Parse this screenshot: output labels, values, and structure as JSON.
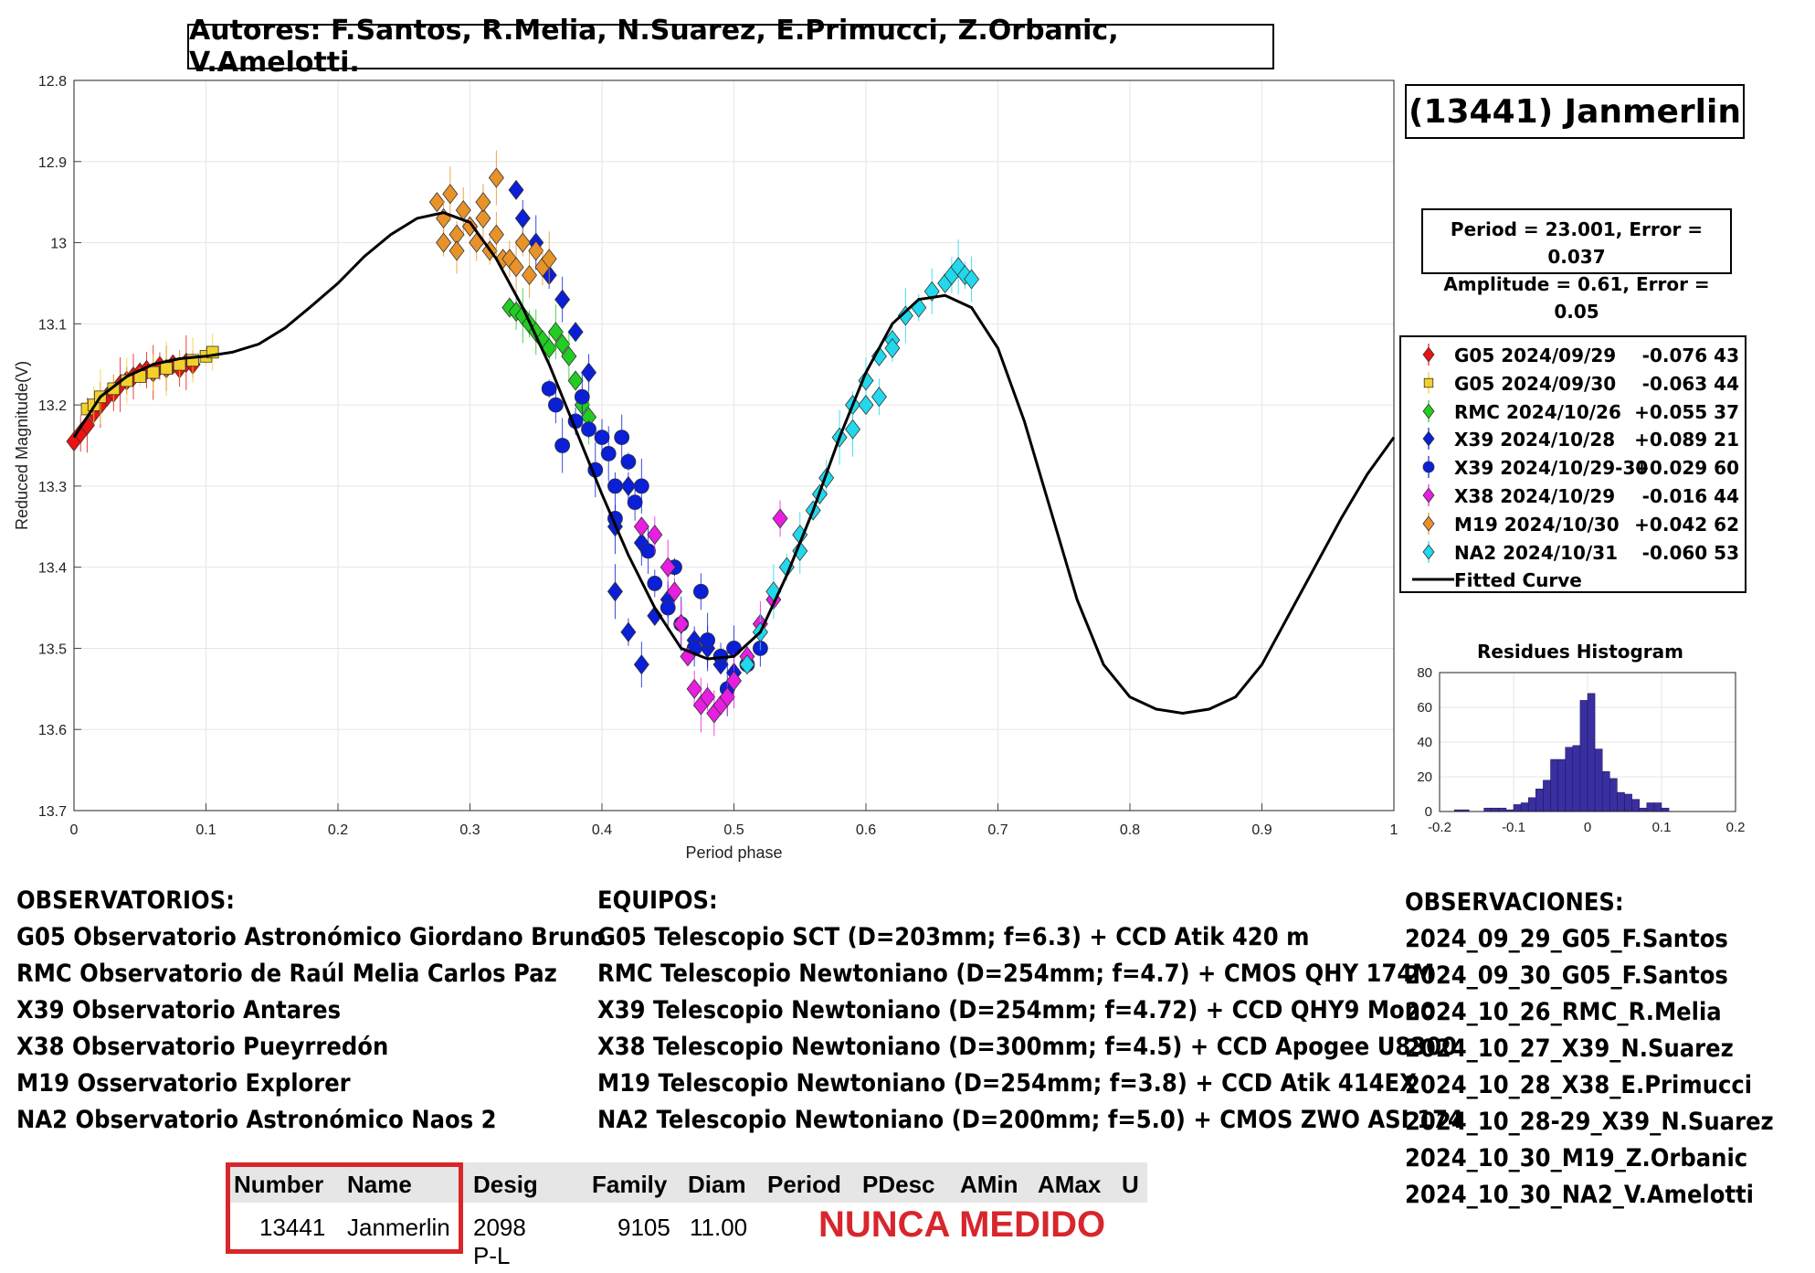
{
  "header": {
    "authors": "Autores: F.Santos, R.Melia, N.Suarez, E.Primucci, Z.Orbanic, V.Amelotti."
  },
  "asteroid_title": "(13441) Janmerlin",
  "fit_info": {
    "line1": "Period =  23.001, Error = 0.037",
    "line2": "Amplitude = 0.61, Error = 0.05"
  },
  "chart_data": [
    {
      "type": "scatter",
      "xlabel": "Period phase",
      "ylabel": "Reduced Magnitude(V)",
      "xlim": [
        0,
        1
      ],
      "ylim": [
        12.8,
        13.7
      ],
      "y_reversed": true,
      "x_ticks": [
        "0",
        "0.1",
        "0.2",
        "0.3",
        "0.4",
        "0.5",
        "0.6",
        "0.7",
        "0.8",
        "0.9",
        "1"
      ],
      "y_ticks": [
        "12.8",
        "12.9",
        "13",
        "13.1",
        "13.2",
        "13.3",
        "13.4",
        "13.5",
        "13.6",
        "13.7"
      ],
      "grid": true,
      "legend_position": "right",
      "fitted_curve": {
        "name": "Fitted Curve",
        "color": "#000000",
        "x": [
          0.0,
          0.02,
          0.04,
          0.06,
          0.08,
          0.1,
          0.12,
          0.14,
          0.16,
          0.18,
          0.2,
          0.22,
          0.24,
          0.26,
          0.28,
          0.3,
          0.32,
          0.34,
          0.36,
          0.38,
          0.4,
          0.42,
          0.44,
          0.46,
          0.48,
          0.5,
          0.52,
          0.54,
          0.56,
          0.58,
          0.6,
          0.62,
          0.64,
          0.66,
          0.68,
          0.7,
          0.72,
          0.74,
          0.76,
          0.78,
          0.8,
          0.82,
          0.84,
          0.86,
          0.88,
          0.9,
          0.92,
          0.94,
          0.96,
          0.98,
          1.0
        ],
        "y": [
          13.24,
          13.19,
          13.165,
          13.15,
          13.143,
          13.14,
          13.135,
          13.125,
          13.105,
          13.078,
          13.05,
          13.017,
          12.99,
          12.97,
          12.963,
          12.975,
          13.02,
          13.08,
          13.15,
          13.23,
          13.31,
          13.385,
          13.45,
          13.5,
          13.513,
          13.51,
          13.48,
          13.41,
          13.33,
          13.24,
          13.16,
          13.1,
          13.07,
          13.065,
          13.08,
          13.13,
          13.22,
          13.33,
          13.44,
          13.52,
          13.56,
          13.575,
          13.58,
          13.575,
          13.56,
          13.52,
          13.46,
          13.4,
          13.34,
          13.285,
          13.24
        ]
      },
      "series": [
        {
          "name": "G05 2024/09/29",
          "offset": "-0.076 43",
          "marker": "diamond",
          "color": "#ee1111",
          "x": [
            0.0,
            0.005,
            0.01,
            0.015,
            0.02,
            0.025,
            0.03,
            0.035,
            0.04,
            0.045,
            0.05,
            0.055,
            0.06,
            0.065,
            0.07,
            0.075,
            0.08,
            0.085,
            0.09
          ],
          "y": [
            13.245,
            13.235,
            13.225,
            13.21,
            13.2,
            13.19,
            13.185,
            13.175,
            13.17,
            13.165,
            13.16,
            13.157,
            13.16,
            13.152,
            13.155,
            13.15,
            13.155,
            13.148,
            13.15
          ]
        },
        {
          "name": "G05 2024/09/30",
          "offset": "-0.063 44",
          "marker": "square",
          "color": "#f2d12a",
          "x": [
            0.01,
            0.015,
            0.02,
            0.03,
            0.04,
            0.05,
            0.06,
            0.07,
            0.08,
            0.09,
            0.1,
            0.105
          ],
          "y": [
            13.205,
            13.2,
            13.19,
            13.18,
            13.17,
            13.165,
            13.16,
            13.155,
            13.15,
            13.145,
            13.14,
            13.135
          ]
        },
        {
          "name": "RMC 2024/10/26",
          "offset": "+0.055 37",
          "marker": "diamond",
          "color": "#22cc22",
          "x": [
            0.33,
            0.335,
            0.34,
            0.345,
            0.35,
            0.355,
            0.36,
            0.365,
            0.37,
            0.375,
            0.38,
            0.385,
            0.39
          ],
          "y": [
            13.08,
            13.085,
            13.09,
            13.1,
            13.11,
            13.12,
            13.13,
            13.11,
            13.125,
            13.14,
            13.17,
            13.2,
            13.215
          ]
        },
        {
          "name": "X39 2024/10/28",
          "offset": "+0.089 21",
          "marker": "diamond",
          "color": "#0a1fd6",
          "x": [
            0.335,
            0.34,
            0.35,
            0.36,
            0.37,
            0.38,
            0.39,
            0.41,
            0.42,
            0.43,
            0.44,
            0.45,
            0.46,
            0.47,
            0.48,
            0.49,
            0.5,
            0.41,
            0.42,
            0.43
          ],
          "y": [
            12.935,
            12.97,
            13.0,
            13.04,
            13.07,
            13.11,
            13.16,
            13.43,
            13.48,
            13.52,
            13.46,
            13.44,
            13.47,
            13.49,
            13.5,
            13.52,
            13.53,
            13.35,
            13.3,
            13.37
          ]
        },
        {
          "name": "X39 2024/10/29-30",
          "offset": "+0.029 60",
          "marker": "circle",
          "color": "#0a1fd6",
          "x": [
            0.36,
            0.365,
            0.37,
            0.38,
            0.385,
            0.39,
            0.4,
            0.405,
            0.41,
            0.415,
            0.42,
            0.425,
            0.43,
            0.44,
            0.45,
            0.46,
            0.47,
            0.48,
            0.49,
            0.5,
            0.51,
            0.52,
            0.395,
            0.41,
            0.435,
            0.455,
            0.475,
            0.495
          ],
          "y": [
            13.18,
            13.2,
            13.25,
            13.22,
            13.19,
            13.23,
            13.24,
            13.26,
            13.3,
            13.24,
            13.27,
            13.32,
            13.3,
            13.42,
            13.45,
            13.47,
            13.5,
            13.49,
            13.51,
            13.5,
            13.52,
            13.5,
            13.28,
            13.34,
            13.38,
            13.4,
            13.43,
            13.55
          ]
        },
        {
          "name": "X38 2024/10/29",
          "offset": "-0.016 44",
          "marker": "diamond",
          "color": "#e81ee0",
          "x": [
            0.43,
            0.44,
            0.45,
            0.455,
            0.46,
            0.465,
            0.47,
            0.475,
            0.48,
            0.485,
            0.49,
            0.495,
            0.5,
            0.51,
            0.52,
            0.53,
            0.535
          ],
          "y": [
            13.35,
            13.36,
            13.4,
            13.43,
            13.47,
            13.51,
            13.55,
            13.57,
            13.56,
            13.58,
            13.57,
            13.56,
            13.54,
            13.51,
            13.47,
            13.44,
            13.34
          ]
        },
        {
          "name": "M19 2024/10/30",
          "offset": "+0.042 62",
          "marker": "diamond",
          "color": "#e8922a",
          "x": [
            0.275,
            0.28,
            0.285,
            0.29,
            0.295,
            0.3,
            0.305,
            0.31,
            0.315,
            0.32,
            0.325,
            0.33,
            0.335,
            0.34,
            0.345,
            0.35,
            0.355,
            0.36,
            0.28,
            0.29,
            0.3,
            0.31,
            0.32
          ],
          "y": [
            12.95,
            12.97,
            12.94,
            12.99,
            12.96,
            12.98,
            13.0,
            12.97,
            13.01,
            12.99,
            13.02,
            13.02,
            13.03,
            13.0,
            13.04,
            13.01,
            13.03,
            13.02,
            13.0,
            13.01,
            12.98,
            12.95,
            12.92
          ]
        },
        {
          "name": "NA2 2024/10/31",
          "offset": "-0.060 53",
          "marker": "diamond",
          "color": "#21d8ec",
          "x": [
            0.51,
            0.52,
            0.53,
            0.54,
            0.55,
            0.56,
            0.57,
            0.58,
            0.59,
            0.6,
            0.61,
            0.62,
            0.63,
            0.64,
            0.65,
            0.66,
            0.665,
            0.67,
            0.675,
            0.68,
            0.6,
            0.61,
            0.59,
            0.62,
            0.55,
            0.565
          ],
          "y": [
            13.52,
            13.48,
            13.43,
            13.4,
            13.36,
            13.33,
            13.29,
            13.24,
            13.2,
            13.17,
            13.14,
            13.12,
            13.09,
            13.08,
            13.06,
            13.05,
            13.04,
            13.03,
            13.04,
            13.045,
            13.2,
            13.19,
            13.23,
            13.13,
            13.38,
            13.31
          ]
        }
      ]
    },
    {
      "type": "bar",
      "title": "Residues Histogram",
      "xlim": [
        -0.2,
        0.2
      ],
      "ylim": [
        0,
        80
      ],
      "x_ticks": [
        "-0.2",
        "-0.1",
        "0",
        "0.1",
        "0.2"
      ],
      "y_ticks": [
        "0",
        "20",
        "40",
        "60",
        "80"
      ],
      "color": "#3a2fa0",
      "bin_width": 0.01,
      "bin_centers": [
        -0.175,
        -0.165,
        -0.135,
        -0.125,
        -0.115,
        -0.105,
        -0.095,
        -0.085,
        -0.075,
        -0.065,
        -0.055,
        -0.045,
        -0.035,
        -0.025,
        -0.015,
        -0.005,
        0.005,
        0.015,
        0.025,
        0.035,
        0.045,
        0.055,
        0.065,
        0.075,
        0.085,
        0.095,
        0.105
      ],
      "values": [
        1,
        1,
        2,
        2,
        2,
        1,
        4,
        5,
        8,
        13,
        18,
        30,
        30,
        37,
        38,
        64,
        68,
        36,
        23,
        19,
        11,
        10,
        7,
        2,
        5,
        5,
        2
      ]
    }
  ],
  "observatorios": {
    "heading": "OBSERVATORIOS:",
    "items": [
      "G05 Observatorio Astronómico Giordano Bruno",
      "RMC Observatorio de Raúl Melia Carlos Paz",
      "X39 Observatorio Antares",
      "X38 Observatorio Pueyrredón",
      "M19 Osservatorio Explorer",
      "NA2 Observatorio Astronómico Naos 2"
    ]
  },
  "equipos": {
    "heading": "EQUIPOS:",
    "items": [
      "G05 Telescopio SCT (D=203mm; f=6.3) + CCD Atik 420 m",
      "RMC Telescopio Newtoniano (D=254mm; f=4.7) + CMOS QHY 174M",
      "X39 Telescopio Newtoniano (D=254mm; f=4.72) + CCD QHY9 Mono",
      "X38 Telescopio Newtoniano (D=300mm; f=4.5) + CCD Apogee U8300",
      "M19 Telescopio Newtoniano (D=254mm; f=3.8) + CCD Atik 414EX",
      "NA2 Telescopio Newtoniano (D=200mm; f=5.0) + CMOS ZWO ASI 174"
    ]
  },
  "observaciones": {
    "heading": "OBSERVACIONES:",
    "items": [
      "2024_09_29_G05_F.Santos",
      "2024_09_30_G05_F.Santos",
      "2024_10_26_RMC_R.Melia",
      "2024_10_27_X39_N.Suarez",
      "2024_10_28_X38_E.Primucci",
      "2024_10_28-29_X39_N.Suarez",
      "2024_10_30_M19_Z.Orbanic",
      "2024_10_30_NA2_V.Amelotti"
    ]
  },
  "lcdb_table": {
    "headers": [
      "Number",
      "Name",
      "Desig",
      "Family",
      "Diam",
      "Period",
      "PDesc",
      "AMin",
      "AMax",
      "U"
    ],
    "row": [
      "13441",
      "Janmerlin",
      "2098 P-L",
      "9105",
      "11.00",
      "",
      "",
      "",
      "",
      ""
    ],
    "note": "NUNCA MEDIDO",
    "note_color": "#d7262c"
  }
}
